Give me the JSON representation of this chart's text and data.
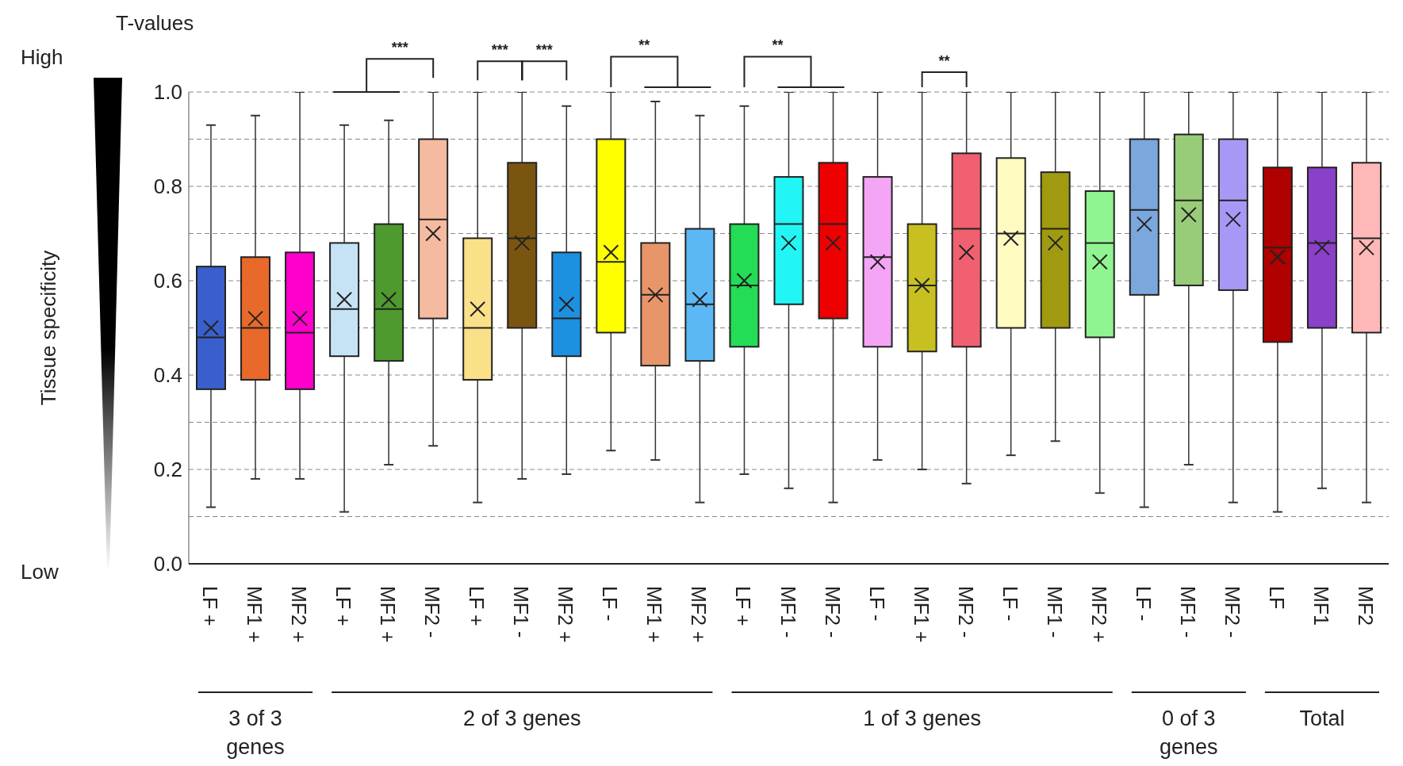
{
  "chart_data": {
    "type": "box",
    "ylabel": "Tissue specificity",
    "categories": [
      "LF +",
      "MF1 +",
      "MF2 +",
      "LF +",
      "MF1 +",
      "MF2 -",
      "LF +",
      "MF1 -",
      "MF2 +",
      "LF -",
      "MF1 +",
      "MF2 +",
      "LF +",
      "MF1 -",
      "MF2 -",
      "LF -",
      "MF1 +",
      "MF2 -",
      "LF -",
      "MF1 -",
      "MF2 +",
      "LF -",
      "MF1 -",
      "MF2 -",
      "LF",
      "MF1",
      "MF2"
    ],
    "colors": [
      "#3a5fcd",
      "#e8692a",
      "#ff00cc",
      "#c5e3f5",
      "#4e9a2e",
      "#f5bba0",
      "#fbe08a",
      "#7a5510",
      "#1e90e0",
      "#ffff00",
      "#e9956a",
      "#5bb8f5",
      "#22dd55",
      "#22f5f5",
      "#ee0000",
      "#f5a5f5",
      "#c8c020",
      "#f06070",
      "#fffac0",
      "#a09a10",
      "#90f590",
      "#7ba7dd",
      "#98cc78",
      "#a898f5",
      "#b00000",
      "#8a40c8",
      "#ffb8b8"
    ],
    "boxes": [
      {
        "low": 0.12,
        "q1": 0.37,
        "median": 0.48,
        "q3": 0.63,
        "high": 0.93,
        "mean": 0.5
      },
      {
        "low": 0.18,
        "q1": 0.39,
        "median": 0.5,
        "q3": 0.65,
        "high": 0.95,
        "mean": 0.52
      },
      {
        "low": 0.18,
        "q1": 0.37,
        "median": 0.49,
        "q3": 0.66,
        "high": 1.0,
        "mean": 0.52
      },
      {
        "low": 0.11,
        "q1": 0.44,
        "median": 0.54,
        "q3": 0.68,
        "high": 0.93,
        "mean": 0.56
      },
      {
        "low": 0.21,
        "q1": 0.43,
        "median": 0.54,
        "q3": 0.72,
        "high": 0.94,
        "mean": 0.56
      },
      {
        "low": 0.25,
        "q1": 0.52,
        "median": 0.73,
        "q3": 0.9,
        "high": 1.0,
        "mean": 0.7
      },
      {
        "low": 0.13,
        "q1": 0.39,
        "median": 0.5,
        "q3": 0.69,
        "high": 1.0,
        "mean": 0.54
      },
      {
        "low": 0.18,
        "q1": 0.5,
        "median": 0.69,
        "q3": 0.85,
        "high": 1.0,
        "mean": 0.68
      },
      {
        "low": 0.19,
        "q1": 0.44,
        "median": 0.52,
        "q3": 0.66,
        "high": 0.97,
        "mean": 0.55
      },
      {
        "low": 0.24,
        "q1": 0.49,
        "median": 0.64,
        "q3": 0.9,
        "high": 1.0,
        "mean": 0.66
      },
      {
        "low": 0.22,
        "q1": 0.42,
        "median": 0.57,
        "q3": 0.68,
        "high": 0.98,
        "mean": 0.57
      },
      {
        "low": 0.13,
        "q1": 0.43,
        "median": 0.55,
        "q3": 0.71,
        "high": 0.95,
        "mean": 0.56
      },
      {
        "low": 0.19,
        "q1": 0.46,
        "median": 0.59,
        "q3": 0.72,
        "high": 0.97,
        "mean": 0.6
      },
      {
        "low": 0.16,
        "q1": 0.55,
        "median": 0.72,
        "q3": 0.82,
        "high": 1.0,
        "mean": 0.68
      },
      {
        "low": 0.13,
        "q1": 0.52,
        "median": 0.72,
        "q3": 0.85,
        "high": 1.0,
        "mean": 0.68
      },
      {
        "low": 0.22,
        "q1": 0.46,
        "median": 0.65,
        "q3": 0.82,
        "high": 1.0,
        "mean": 0.64
      },
      {
        "low": 0.2,
        "q1": 0.45,
        "median": 0.59,
        "q3": 0.72,
        "high": 1.0,
        "mean": 0.59
      },
      {
        "low": 0.17,
        "q1": 0.46,
        "median": 0.71,
        "q3": 0.87,
        "high": 1.0,
        "mean": 0.66
      },
      {
        "low": 0.23,
        "q1": 0.5,
        "median": 0.7,
        "q3": 0.86,
        "high": 1.0,
        "mean": 0.69
      },
      {
        "low": 0.26,
        "q1": 0.5,
        "median": 0.71,
        "q3": 0.83,
        "high": 1.0,
        "mean": 0.68
      },
      {
        "low": 0.15,
        "q1": 0.48,
        "median": 0.68,
        "q3": 0.79,
        "high": 1.0,
        "mean": 0.64
      },
      {
        "low": 0.12,
        "q1": 0.57,
        "median": 0.75,
        "q3": 0.9,
        "high": 1.0,
        "mean": 0.72
      },
      {
        "low": 0.21,
        "q1": 0.59,
        "median": 0.77,
        "q3": 0.91,
        "high": 1.0,
        "mean": 0.74
      },
      {
        "low": 0.13,
        "q1": 0.58,
        "median": 0.77,
        "q3": 0.9,
        "high": 1.0,
        "mean": 0.73
      },
      {
        "low": 0.11,
        "q1": 0.47,
        "median": 0.67,
        "q3": 0.84,
        "high": 1.0,
        "mean": 0.65
      },
      {
        "low": 0.16,
        "q1": 0.5,
        "median": 0.68,
        "q3": 0.84,
        "high": 1.0,
        "mean": 0.67
      },
      {
        "low": 0.13,
        "q1": 0.49,
        "median": 0.69,
        "q3": 0.85,
        "high": 1.0,
        "mean": 0.67
      }
    ],
    "ylim": [
      0,
      1
    ],
    "yticks": [
      {
        "value": 0,
        "label": "0.0"
      },
      {
        "value": 0.1,
        "label": null
      },
      {
        "value": 0.2,
        "label": "0.2"
      },
      {
        "value": 0.3,
        "label": null
      },
      {
        "value": 0.4,
        "label": "0.4"
      },
      {
        "value": 0.5,
        "label": null
      },
      {
        "value": 0.6,
        "label": "0.6"
      },
      {
        "value": 0.7,
        "label": null
      },
      {
        "value": 0.8,
        "label": "0.8"
      },
      {
        "value": 0.9,
        "label": null
      },
      {
        "value": 1.0,
        "label": "1.0"
      }
    ],
    "grid": "y",
    "annotations": [
      "T-values",
      "High",
      "Low",
      "3 of 3 genes",
      "2 of 3 genes",
      "1 of 3 genes",
      "0 of 3 genes",
      "Total",
      "***",
      "***",
      "***",
      "**",
      "**",
      "**"
    ]
  }
}
